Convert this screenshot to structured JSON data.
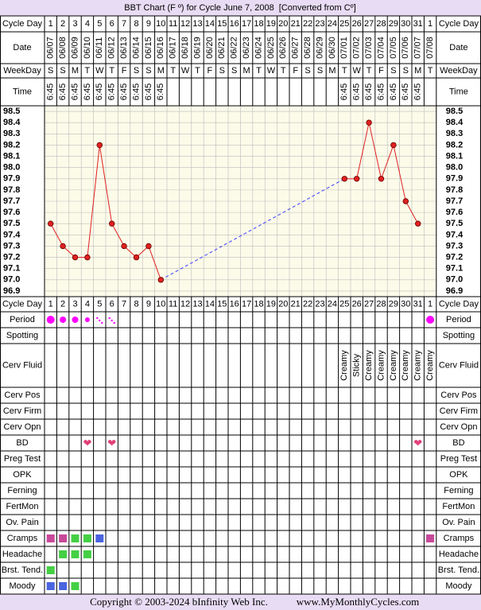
{
  "title": "BBT Chart (F º) for Cycle June 7, 2008  [Converted from Cº]",
  "row_labels": {
    "cycle_day": "Cycle Day",
    "date": "Date",
    "weekday": "WeekDay",
    "time": "Time"
  },
  "days": [
    "1",
    "2",
    "3",
    "4",
    "5",
    "6",
    "7",
    "8",
    "9",
    "10",
    "11",
    "12",
    "13",
    "14",
    "15",
    "16",
    "17",
    "18",
    "19",
    "20",
    "21",
    "22",
    "23",
    "24",
    "25",
    "26",
    "27",
    "28",
    "29",
    "30",
    "31",
    "1"
  ],
  "dates": [
    "06/07",
    "06/08",
    "06/09",
    "06/10",
    "06/11",
    "06/12",
    "06/13",
    "06/14",
    "06/15",
    "06/16",
    "06/17",
    "06/18",
    "06/19",
    "06/20",
    "06/21",
    "06/22",
    "06/23",
    "06/24",
    "06/25",
    "06/26",
    "06/27",
    "06/28",
    "06/29",
    "06/30",
    "07/01",
    "07/02",
    "07/03",
    "07/04",
    "07/05",
    "07/06",
    "07/07",
    "07/08"
  ],
  "weekdays": [
    "S",
    "S",
    "M",
    "T",
    "W",
    "T",
    "F",
    "S",
    "S",
    "M",
    "T",
    "W",
    "T",
    "F",
    "S",
    "S",
    "M",
    "T",
    "W",
    "T",
    "F",
    "S",
    "S",
    "M",
    "T",
    "W",
    "T",
    "F",
    "S",
    "S",
    "M",
    "T"
  ],
  "times": [
    "6:45",
    "6:45",
    "6:45",
    "6:45",
    "6:45",
    "6:45",
    "6:45",
    "6:45",
    "6:45",
    "6:45",
    null,
    null,
    null,
    null,
    null,
    null,
    null,
    null,
    null,
    null,
    null,
    null,
    null,
    null,
    "6:45",
    "6:45",
    "6:45",
    "6:45",
    "6:45",
    "6:45",
    "6:45",
    null
  ],
  "chart_data": {
    "type": "line",
    "categories": [
      "1",
      "2",
      "3",
      "4",
      "5",
      "6",
      "7",
      "8",
      "9",
      "10",
      "11",
      "12",
      "13",
      "14",
      "15",
      "16",
      "17",
      "18",
      "19",
      "20",
      "21",
      "22",
      "23",
      "24",
      "25",
      "26",
      "27",
      "28",
      "29",
      "30",
      "31",
      "1"
    ],
    "values": [
      97.5,
      97.3,
      97.2,
      97.2,
      98.2,
      97.5,
      97.3,
      97.2,
      97.3,
      97.0,
      null,
      null,
      null,
      null,
      null,
      null,
      null,
      null,
      null,
      null,
      null,
      null,
      null,
      null,
      97.9,
      97.9,
      98.4,
      97.9,
      98.2,
      97.7,
      97.5,
      null
    ],
    "color": "#e02020",
    "gap_color": "#3c3cff",
    "ylim": [
      96.85,
      98.55
    ],
    "yticks": [
      96.9,
      {
        "value": 97,
        "label": "97.0"
      },
      97.1,
      97.2,
      97.3,
      97.4,
      97.5,
      97.6,
      97.7,
      97.8,
      97.9,
      {
        "value": 98,
        "label": "98.0"
      },
      98.1,
      98.2,
      98.3,
      98.4,
      98.5
    ],
    "grid": true
  },
  "rows": [
    {
      "label": "Period",
      "cells": [
        4,
        3,
        3,
        2,
        1,
        1,
        null,
        null,
        null,
        null,
        null,
        null,
        null,
        null,
        null,
        null,
        null,
        null,
        null,
        null,
        null,
        null,
        null,
        null,
        null,
        null,
        null,
        null,
        null,
        null,
        null,
        4
      ]
    },
    {
      "label": "Spotting",
      "cells": [
        null,
        null,
        null,
        null,
        null,
        null,
        null,
        null,
        null,
        null,
        null,
        null,
        null,
        null,
        null,
        null,
        null,
        null,
        null,
        null,
        null,
        null,
        null,
        null,
        null,
        null,
        null,
        null,
        null,
        null,
        null,
        null
      ]
    },
    {
      "label": "Cerv Fluid",
      "cells": [
        null,
        null,
        null,
        null,
        null,
        null,
        null,
        null,
        null,
        null,
        null,
        null,
        null,
        null,
        null,
        null,
        null,
        null,
        null,
        null,
        null,
        null,
        null,
        null,
        "Creamy",
        "Sticky",
        "Creamy",
        "Creamy",
        "Creamy",
        "Creamy",
        "Creamy",
        "Creamy"
      ]
    },
    {
      "label": "Cerv Pos",
      "cells": []
    },
    {
      "label": "Cerv Firm",
      "cells": []
    },
    {
      "label": "Cerv Opn",
      "cells": []
    },
    {
      "label": "BD",
      "cells": [
        null,
        null,
        null,
        "❤",
        null,
        "❤",
        null,
        null,
        null,
        null,
        null,
        null,
        null,
        null,
        null,
        null,
        null,
        null,
        null,
        null,
        null,
        null,
        null,
        null,
        null,
        null,
        null,
        null,
        null,
        null,
        "❤",
        null
      ]
    },
    {
      "label": "Preg Test",
      "cells": []
    },
    {
      "label": "OPK",
      "cells": []
    },
    {
      "label": "Ferning",
      "cells": []
    },
    {
      "label": "FertMon",
      "cells": []
    },
    {
      "label": "Ov. Pain",
      "cells": []
    },
    {
      "label": "Cramps",
      "cells": [
        "#c8489a",
        "#c8489a",
        "#44d044",
        "#44d044",
        "#4a64e0",
        null,
        null,
        null,
        null,
        null,
        null,
        null,
        null,
        null,
        null,
        null,
        null,
        null,
        null,
        null,
        null,
        null,
        null,
        null,
        null,
        null,
        null,
        null,
        null,
        null,
        null,
        "#c8489a"
      ]
    },
    {
      "label": "Headache",
      "cells": [
        null,
        "#44d044",
        "#44d044",
        "#44d044"
      ]
    },
    {
      "label": "Brst. Tend.",
      "cells": [
        "#44d044"
      ]
    },
    {
      "label": "Moody",
      "cells": [
        "#4a64e0",
        "#4a64e0",
        "#44d044"
      ]
    }
  ],
  "footer": [
    "Copyright © 2003-2024 bInfinity Web Inc.",
    "www.MyMonthlyCycles.com"
  ]
}
